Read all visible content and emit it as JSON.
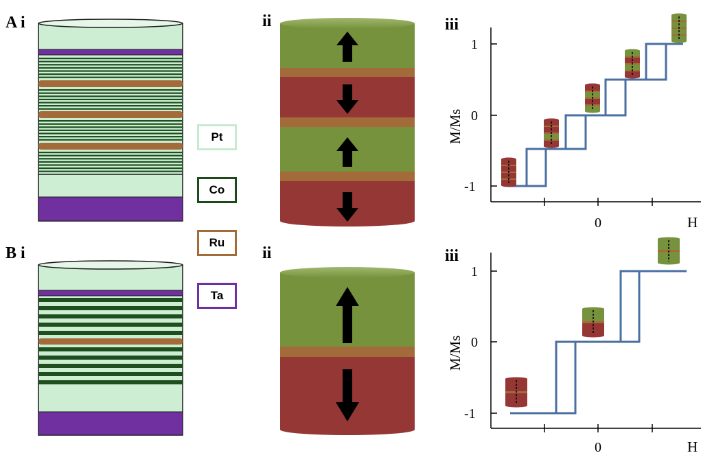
{
  "panels": {
    "a_label": "A i",
    "b_label": "B i",
    "ii_label": "ii",
    "iii_label": "iii"
  },
  "legend": [
    {
      "label": "Pt",
      "color": "#c8ebcf"
    },
    {
      "label": "Co",
      "color": "#1c4a1c"
    },
    {
      "label": "Ru",
      "color": "#a36a3a"
    },
    {
      "label": "Ta",
      "color": "#7030a0"
    }
  ],
  "colors": {
    "pt": "#cdeed3",
    "co": "#1e4d1e",
    "ru": "#a36a3a",
    "ta": "#7030a0",
    "green_layer": "#77923c",
    "red_layer": "#953735",
    "loop_line": "#4a6fa0"
  },
  "chart_data": [
    {
      "type": "line",
      "panel": "A iii",
      "xlabel": "H",
      "ylabel": "M/Ms",
      "yticks": [
        "1",
        "0",
        "-1"
      ],
      "xticks": [
        "0"
      ],
      "ylim": [
        -1,
        1
      ],
      "series": [
        {
          "values_descending": [
            -1,
            -0.5,
            0,
            0.5,
            1
          ]
        }
      ]
    },
    {
      "type": "line",
      "panel": "B iii",
      "xlabel": "H",
      "ylabel": "M/Ms",
      "yticks": [
        "1",
        "0",
        "-1"
      ],
      "xticks": [
        "0"
      ],
      "ylim": [
        -1,
        1
      ],
      "series": [
        {
          "values_descending": [
            -1,
            0,
            1
          ]
        }
      ]
    }
  ]
}
